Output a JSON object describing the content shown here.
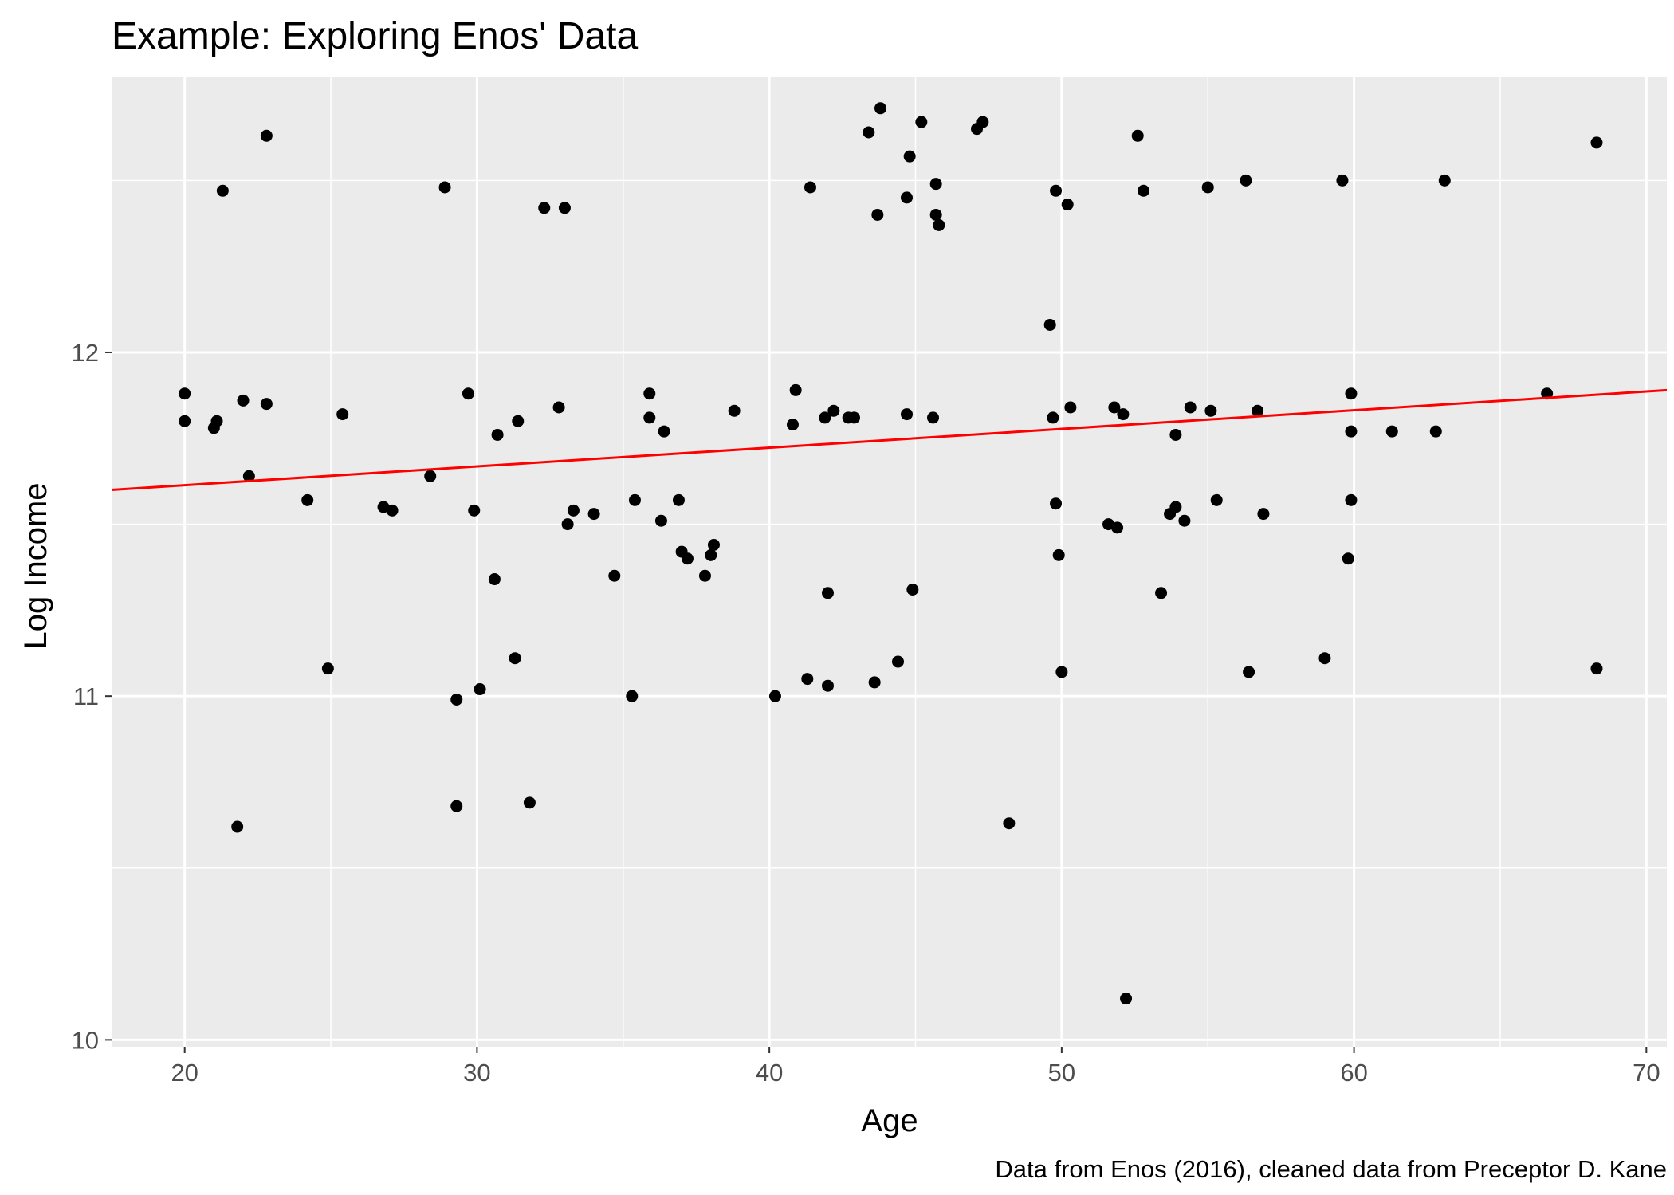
{
  "chart_data": {
    "type": "scatter",
    "title": "Example: Exploring Enos' Data",
    "xlabel": "Age",
    "ylabel": "Log Income",
    "caption": "Data from Enos (2016), cleaned data from Preceptor D. Kane",
    "xlim": [
      17.5,
      70.7
    ],
    "ylim": [
      9.98,
      12.8
    ],
    "x_ticks": [
      20,
      30,
      40,
      50,
      60,
      70
    ],
    "y_ticks": [
      10,
      11,
      12
    ],
    "grid": true,
    "panel_background": "#ebebeb",
    "point_color": "#000000",
    "trend_line": {
      "method": "linear fit",
      "color": "#ff0000",
      "x": [
        17.5,
        70.7
      ],
      "y": [
        11.6,
        11.89
      ]
    },
    "points": [
      {
        "x": 20.0,
        "y": 11.8
      },
      {
        "x": 20.0,
        "y": 11.88
      },
      {
        "x": 21.0,
        "y": 11.78
      },
      {
        "x": 21.1,
        "y": 11.8
      },
      {
        "x": 21.3,
        "y": 12.47
      },
      {
        "x": 21.8,
        "y": 10.62
      },
      {
        "x": 22.0,
        "y": 11.86
      },
      {
        "x": 22.2,
        "y": 11.64
      },
      {
        "x": 22.8,
        "y": 12.63
      },
      {
        "x": 22.8,
        "y": 11.85
      },
      {
        "x": 24.2,
        "y": 11.57
      },
      {
        "x": 24.9,
        "y": 11.08
      },
      {
        "x": 25.4,
        "y": 11.82
      },
      {
        "x": 26.8,
        "y": 11.55
      },
      {
        "x": 27.1,
        "y": 11.54
      },
      {
        "x": 28.4,
        "y": 11.64
      },
      {
        "x": 28.9,
        "y": 12.48
      },
      {
        "x": 29.3,
        "y": 10.68
      },
      {
        "x": 29.3,
        "y": 10.99
      },
      {
        "x": 29.7,
        "y": 11.88
      },
      {
        "x": 29.9,
        "y": 11.54
      },
      {
        "x": 30.1,
        "y": 11.02
      },
      {
        "x": 30.6,
        "y": 11.34
      },
      {
        "x": 30.7,
        "y": 11.76
      },
      {
        "x": 31.3,
        "y": 11.11
      },
      {
        "x": 31.4,
        "y": 11.8
      },
      {
        "x": 31.8,
        "y": 10.69
      },
      {
        "x": 32.3,
        "y": 12.42
      },
      {
        "x": 32.8,
        "y": 11.84
      },
      {
        "x": 33.0,
        "y": 12.42
      },
      {
        "x": 33.1,
        "y": 11.5
      },
      {
        "x": 33.3,
        "y": 11.54
      },
      {
        "x": 34.0,
        "y": 11.53
      },
      {
        "x": 34.7,
        "y": 11.35
      },
      {
        "x": 35.3,
        "y": 11.0
      },
      {
        "x": 35.4,
        "y": 11.57
      },
      {
        "x": 35.9,
        "y": 11.81
      },
      {
        "x": 35.9,
        "y": 11.88
      },
      {
        "x": 36.3,
        "y": 11.51
      },
      {
        "x": 36.4,
        "y": 11.77
      },
      {
        "x": 36.9,
        "y": 11.57
      },
      {
        "x": 37.0,
        "y": 11.42
      },
      {
        "x": 37.2,
        "y": 11.4
      },
      {
        "x": 37.8,
        "y": 11.35
      },
      {
        "x": 38.0,
        "y": 11.41
      },
      {
        "x": 38.1,
        "y": 11.44
      },
      {
        "x": 38.8,
        "y": 11.83
      },
      {
        "x": 40.2,
        "y": 11.0
      },
      {
        "x": 40.8,
        "y": 11.79
      },
      {
        "x": 40.9,
        "y": 11.89
      },
      {
        "x": 41.3,
        "y": 11.05
      },
      {
        "x": 41.4,
        "y": 12.48
      },
      {
        "x": 41.9,
        "y": 11.81
      },
      {
        "x": 42.0,
        "y": 11.3
      },
      {
        "x": 42.0,
        "y": 11.03
      },
      {
        "x": 42.2,
        "y": 11.83
      },
      {
        "x": 42.7,
        "y": 11.81
      },
      {
        "x": 42.9,
        "y": 11.81
      },
      {
        "x": 43.4,
        "y": 12.64
      },
      {
        "x": 43.6,
        "y": 11.04
      },
      {
        "x": 43.7,
        "y": 12.4
      },
      {
        "x": 43.8,
        "y": 12.71
      },
      {
        "x": 44.4,
        "y": 11.1
      },
      {
        "x": 44.7,
        "y": 12.45
      },
      {
        "x": 44.7,
        "y": 11.82
      },
      {
        "x": 44.8,
        "y": 12.57
      },
      {
        "x": 44.9,
        "y": 11.31
      },
      {
        "x": 45.2,
        "y": 12.67
      },
      {
        "x": 45.6,
        "y": 11.81
      },
      {
        "x": 45.7,
        "y": 12.49
      },
      {
        "x": 45.7,
        "y": 12.4
      },
      {
        "x": 45.8,
        "y": 12.37
      },
      {
        "x": 47.1,
        "y": 12.65
      },
      {
        "x": 47.3,
        "y": 12.67
      },
      {
        "x": 48.2,
        "y": 10.63
      },
      {
        "x": 49.6,
        "y": 12.08
      },
      {
        "x": 49.7,
        "y": 11.81
      },
      {
        "x": 49.8,
        "y": 12.47
      },
      {
        "x": 49.8,
        "y": 11.56
      },
      {
        "x": 49.9,
        "y": 11.41
      },
      {
        "x": 50.0,
        "y": 11.07
      },
      {
        "x": 50.2,
        "y": 12.43
      },
      {
        "x": 50.3,
        "y": 11.84
      },
      {
        "x": 51.6,
        "y": 11.5
      },
      {
        "x": 51.8,
        "y": 11.84
      },
      {
        "x": 51.9,
        "y": 11.49
      },
      {
        "x": 52.1,
        "y": 11.82
      },
      {
        "x": 52.2,
        "y": 10.12
      },
      {
        "x": 52.6,
        "y": 12.63
      },
      {
        "x": 52.8,
        "y": 12.47
      },
      {
        "x": 53.4,
        "y": 11.3
      },
      {
        "x": 53.7,
        "y": 11.53
      },
      {
        "x": 53.9,
        "y": 11.55
      },
      {
        "x": 53.9,
        "y": 11.76
      },
      {
        "x": 54.2,
        "y": 11.51
      },
      {
        "x": 54.4,
        "y": 11.84
      },
      {
        "x": 55.0,
        "y": 12.48
      },
      {
        "x": 55.1,
        "y": 11.83
      },
      {
        "x": 55.3,
        "y": 11.57
      },
      {
        "x": 56.3,
        "y": 12.5
      },
      {
        "x": 56.4,
        "y": 11.07
      },
      {
        "x": 56.7,
        "y": 11.83
      },
      {
        "x": 56.9,
        "y": 11.53
      },
      {
        "x": 59.0,
        "y": 11.11
      },
      {
        "x": 59.6,
        "y": 12.5
      },
      {
        "x": 59.8,
        "y": 11.4
      },
      {
        "x": 59.9,
        "y": 11.57
      },
      {
        "x": 59.9,
        "y": 11.88
      },
      {
        "x": 59.9,
        "y": 11.77
      },
      {
        "x": 61.3,
        "y": 11.77
      },
      {
        "x": 62.8,
        "y": 11.77
      },
      {
        "x": 63.1,
        "y": 12.5
      },
      {
        "x": 66.6,
        "y": 11.88
      },
      {
        "x": 68.3,
        "y": 11.08
      },
      {
        "x": 68.3,
        "y": 12.61
      }
    ]
  }
}
